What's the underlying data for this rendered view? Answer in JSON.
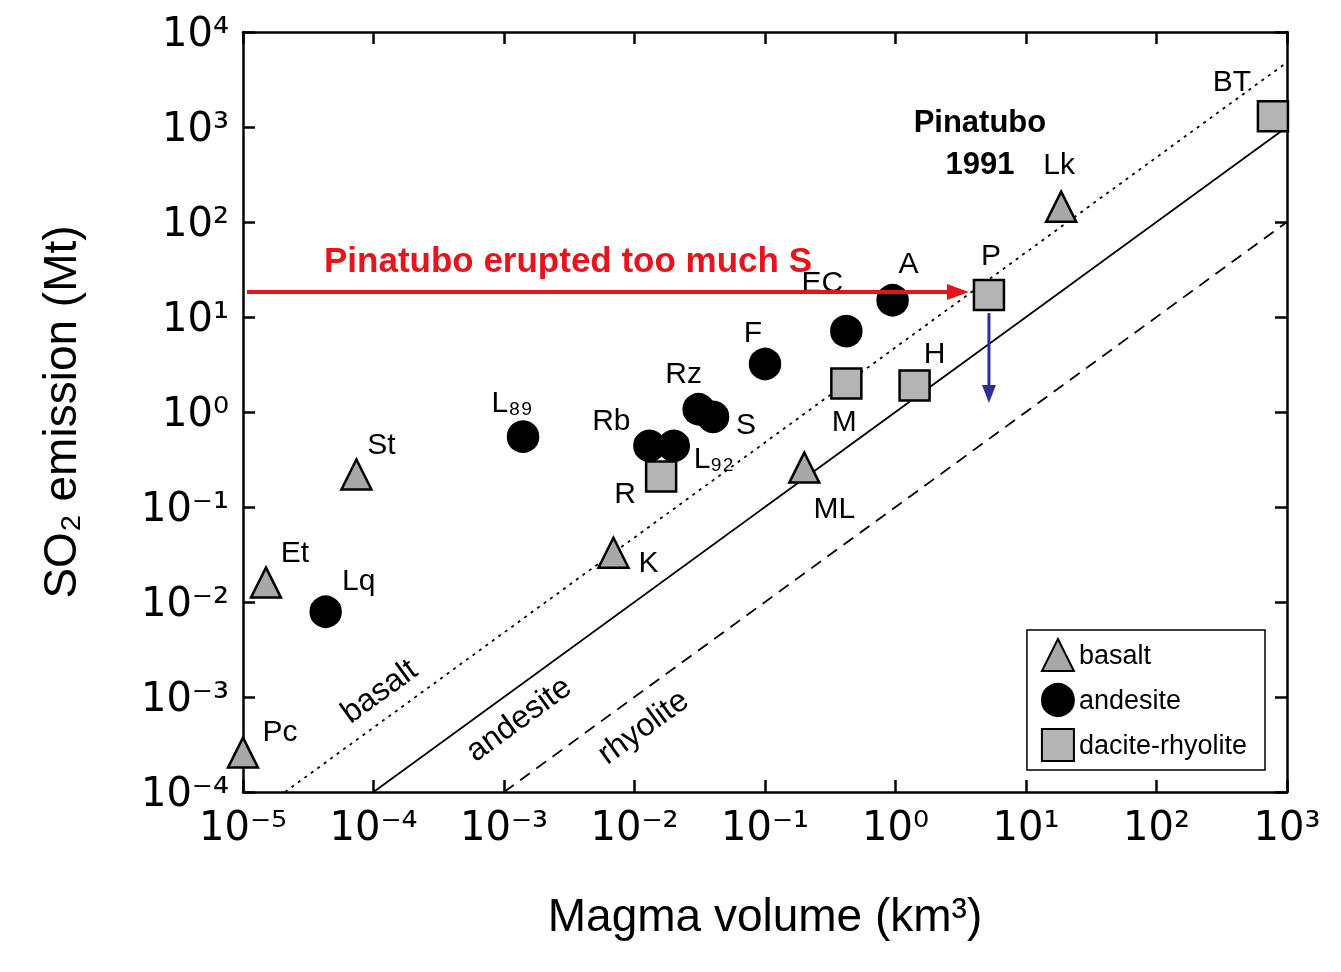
{
  "chart_data": {
    "type": "scatter",
    "xlabel": "Magma volume (km³)",
    "ylabel": "SO₂ emission (Mt)",
    "log": "xy",
    "legend": "bottom right",
    "xlim": [
      1e-05,
      1000
    ],
    "ylim": [
      0.0001,
      10000
    ],
    "xticks": [
      {
        "value": 1e-05,
        "label": "10⁻⁵"
      },
      {
        "value": 0.0001,
        "label": "10⁻⁴"
      },
      {
        "value": 0.001,
        "label": "10⁻³"
      },
      {
        "value": 0.01,
        "label": "10⁻²"
      },
      {
        "value": 0.1,
        "label": "10⁻¹"
      },
      {
        "value": 1,
        "label": "10⁰"
      },
      {
        "value": 10,
        "label": "10¹"
      },
      {
        "value": 100,
        "label": "10²"
      },
      {
        "value": 1000,
        "label": "10³"
      }
    ],
    "yticks": [
      {
        "value": 0.0001,
        "label": "10⁻⁴"
      },
      {
        "value": 0.001,
        "label": "10⁻³"
      },
      {
        "value": 0.01,
        "label": "10⁻²"
      },
      {
        "value": 0.1,
        "label": "10⁻¹"
      },
      {
        "value": 1,
        "label": "10⁰"
      },
      {
        "value": 10,
        "label": "10¹"
      },
      {
        "value": 100,
        "label": "10²"
      },
      {
        "value": 1000,
        "label": "10³"
      },
      {
        "value": 10000,
        "label": "10⁴"
      }
    ],
    "series": [
      {
        "name": "basalt",
        "marker": "triangle",
        "color": "#a8a8a8",
        "x": [
          1e-05,
          1.5e-05,
          7.4e-05,
          0.0069,
          0.2,
          18.6
        ],
        "values": [
          0.00026,
          0.016,
          0.22,
          0.033,
          0.26,
          145
        ]
      },
      {
        "name": "andesite",
        "marker": "circle",
        "color": "#000000",
        "x": [
          4.3e-05,
          0.0014,
          0.013,
          0.02,
          0.031,
          0.04,
          0.1,
          0.42,
          0.95
        ],
        "values": [
          0.0079,
          0.55,
          0.44,
          0.44,
          1.07,
          0.89,
          3.2,
          7.1,
          15
        ]
      },
      {
        "name": "dacite-rhyolite",
        "marker": "square",
        "color": "#b4b4b4",
        "x": [
          0.016,
          0.42,
          1.4,
          5.2,
          780
        ],
        "values": [
          0.21,
          2.0,
          1.9,
          17,
          1300
        ]
      },
      {
        "type": "line",
        "marker": "none",
        "line_style": "dotted",
        "color": "#000000",
        "x": [
          2.1e-05,
          1000
        ],
        "values": [
          0.0001,
          4800
        ]
      },
      {
        "type": "line",
        "marker": "none",
        "line_style": "solid",
        "color": "#000000",
        "x": [
          0.0001,
          1000
        ],
        "values": [
          0.0001,
          1000
        ]
      },
      {
        "type": "line",
        "marker": "none",
        "line_style": "dashed",
        "color": "#000000",
        "x": [
          0.001,
          1000
        ],
        "values": [
          0.0001,
          100
        ]
      }
    ],
    "annotations": [
      {
        "text": "Pc",
        "x": 1e-05,
        "y": 0.00026
      },
      {
        "text": "Et",
        "x": 1.5e-05,
        "y": 0.016
      },
      {
        "text": "St",
        "x": 7.4e-05,
        "y": 0.22
      },
      {
        "text": "K",
        "x": 0.0069,
        "y": 0.033
      },
      {
        "text": "ML",
        "x": 0.2,
        "y": 0.26
      },
      {
        "text": "Lk",
        "x": 18.6,
        "y": 145
      },
      {
        "text": "Lq",
        "x": 4.3e-05,
        "y": 0.0079
      },
      {
        "text": "L₈₉",
        "x": 0.0014,
        "y": 0.55
      },
      {
        "text": "Rb",
        "x": 0.013,
        "y": 0.44
      },
      {
        "text": "L₉₂",
        "x": 0.02,
        "y": 0.44
      },
      {
        "text": "Rz",
        "x": 0.031,
        "y": 1.07
      },
      {
        "text": "S",
        "x": 0.04,
        "y": 0.89
      },
      {
        "text": "F",
        "x": 0.1,
        "y": 3.2
      },
      {
        "text": "EC",
        "x": 0.42,
        "y": 7.1
      },
      {
        "text": "A",
        "x": 0.95,
        "y": 15
      },
      {
        "text": "R",
        "x": 0.016,
        "y": 0.21
      },
      {
        "text": "M",
        "x": 0.42,
        "y": 2.0
      },
      {
        "text": "H",
        "x": 1.4,
        "y": 1.9
      },
      {
        "text": "P",
        "x": 5.2,
        "y": 17
      },
      {
        "text": "BT",
        "x": 780,
        "y": 1300
      },
      "Pinatubo\n1991",
      {
        "text": "basalt",
        "x": 0.0001,
        "y": 0.00048
      },
      {
        "text": "andesite",
        "x": 0.001,
        "y": 0.001
      },
      {
        "text": "rhyolite",
        "x": 0.01,
        "y": 0.001
      },
      "Pinatubo erupted too much S"
    ]
  }
}
